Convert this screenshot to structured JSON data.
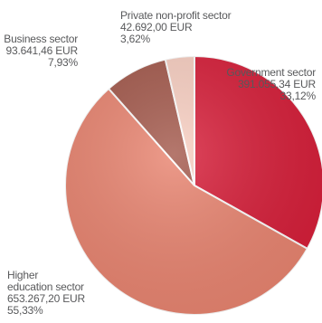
{
  "chart_data": {
    "type": "pie",
    "title": "",
    "slices": [
      {
        "name": "Government sector",
        "value_label": "391.055,34 EUR",
        "percent_label": "33,12%",
        "value": 391055.34,
        "percent": 33.12,
        "color": "#d71f3a"
      },
      {
        "name": "Higher education sector",
        "name_line1": "Higher",
        "name_line2": "education sector",
        "value_label": "653.267,20 EUR",
        "percent_label": "55,33%",
        "value": 653267.2,
        "percent": 55.33,
        "color": "#e98571"
      },
      {
        "name": "Business sector",
        "value_label": "93.641,46 EUR",
        "percent_label": "7,93%",
        "value": 93641.46,
        "percent": 7.93,
        "color": "#a45a4d"
      },
      {
        "name": "Private non-profit sector",
        "value_label": "42.692,00 EUR",
        "percent_label": "3,62%",
        "value": 42692.0,
        "percent": 3.62,
        "color": "#f8cfc2"
      }
    ]
  }
}
